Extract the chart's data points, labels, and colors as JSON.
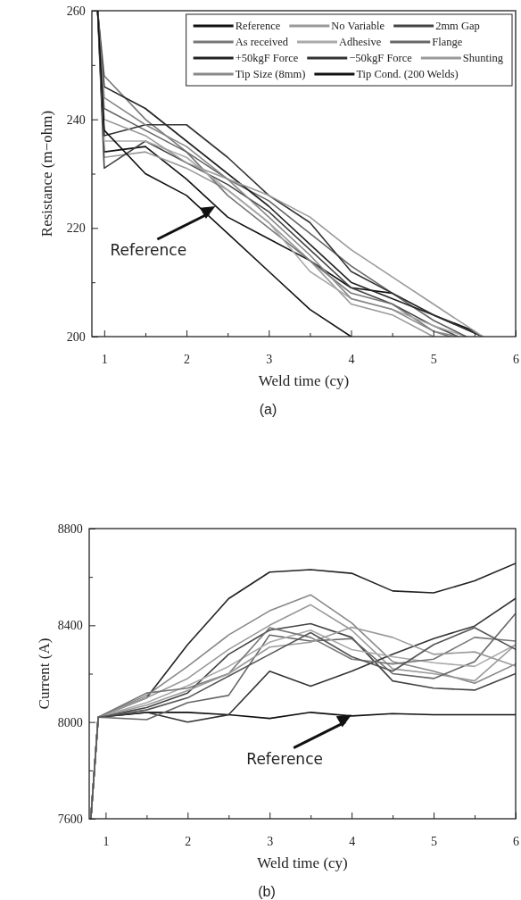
{
  "chart_data": [
    {
      "type": "line",
      "title": "(a)",
      "xlabel": "Weld time (cy)",
      "ylabel": "Resistance (m−ohm)",
      "xlim": [
        0.85,
        6
      ],
      "ylim": [
        200,
        260
      ],
      "xticks": [
        1,
        {
          "value": 1.5,
          "label": null
        },
        2,
        {
          "value": 2.5,
          "label": null
        },
        3,
        {
          "value": 3.5,
          "label": null
        },
        4,
        {
          "value": 4.5,
          "label": null
        },
        5,
        {
          "value": 5.5,
          "label": null
        },
        6
      ],
      "yticks": [
        200,
        {
          "value": 210,
          "label": null
        },
        220,
        {
          "value": 230,
          "label": null
        },
        240,
        {
          "value": 250,
          "label": null
        },
        260
      ],
      "grid": false,
      "legend": "top right",
      "marker": "none",
      "line_style": "solid",
      "annotations": [
        {
          "text": "Reference",
          "x": 2.35,
          "y": 224
        }
      ],
      "series": [
        {
          "name": "Reference",
          "color": "#111111",
          "x": [
            0.92,
            1,
            1.5,
            2,
            2.5,
            3,
            3.5,
            4,
            4.5,
            5,
            5.5
          ],
          "values": [
            260,
            234,
            235,
            229,
            222,
            218,
            214,
            209,
            208,
            204,
            201
          ]
        },
        {
          "name": "No Variable",
          "color": "#999999",
          "x": [
            0.92,
            1,
            1.5,
            2,
            2.5,
            3,
            3.5,
            4,
            4.5,
            5
          ],
          "values": [
            260,
            233,
            234,
            231,
            227,
            221,
            214,
            206,
            204,
            200
          ]
        },
        {
          "name": "2mm Gap",
          "color": "#444444",
          "x": [
            0.92,
            1,
            1.5,
            2,
            2.5,
            3,
            3.5,
            4,
            4.5,
            5,
            5.3
          ],
          "values": [
            260,
            231,
            236,
            232,
            228,
            223,
            216,
            209,
            206,
            202,
            200
          ]
        },
        {
          "name": "As received",
          "color": "#777777",
          "x": [
            0.92,
            1,
            1.5,
            2,
            2.5,
            3,
            3.5,
            4,
            4.5,
            5,
            5.2
          ],
          "values": [
            260,
            248,
            240,
            234,
            226,
            220,
            214,
            208,
            206,
            201,
            200
          ]
        },
        {
          "name": "Adhesive",
          "color": "#aaaaaa",
          "x": [
            0.92,
            1,
            1.5,
            2,
            2.5,
            3,
            3.5,
            4,
            4.5,
            5,
            5.4
          ],
          "values": [
            260,
            236,
            236,
            233,
            227,
            221,
            212,
            207,
            205,
            202,
            200
          ]
        },
        {
          "name": "Flange",
          "color": "#666666",
          "x": [
            0.92,
            1,
            1.5,
            2,
            2.5,
            3,
            3.5,
            4,
            4.5,
            5,
            5.4
          ],
          "values": [
            260,
            242,
            238,
            234,
            229,
            225,
            219,
            213,
            208,
            203,
            200
          ]
        },
        {
          "name": "+50kgF Force",
          "color": "#222222",
          "x": [
            0.92,
            1,
            1.5,
            2,
            2.5,
            3,
            3.5,
            4,
            4.5,
            5,
            5.6
          ],
          "values": [
            260,
            246,
            242,
            236,
            230,
            224,
            217,
            210,
            207,
            204,
            200
          ]
        },
        {
          "name": "−50kgF Force",
          "color": "#333333",
          "x": [
            0.92,
            1,
            1.5,
            2,
            2.5,
            3,
            3.5,
            4,
            4.5,
            5,
            5.6
          ],
          "values": [
            260,
            237,
            239,
            239,
            233,
            226,
            221,
            212,
            208,
            204,
            200
          ]
        },
        {
          "name": "Shunting",
          "color": "#9a9a9a",
          "x": [
            0.92,
            1,
            1.5,
            2,
            2.5,
            3,
            3.5,
            4,
            4.5,
            5,
            5.6
          ],
          "values": [
            260,
            240,
            237,
            232,
            229,
            226,
            222,
            216,
            211,
            206,
            200
          ]
        },
        {
          "name": "Tip Size (8mm)",
          "color": "#888888",
          "x": [
            0.92,
            1,
            1.5,
            2,
            2.5,
            3,
            3.5,
            4,
            4.5,
            5,
            5.3
          ],
          "values": [
            260,
            244,
            239,
            235,
            229,
            222,
            215,
            207,
            205,
            201,
            200
          ]
        },
        {
          "name": "Tip Cond. (200 Welds)",
          "color": "#111111",
          "x": [
            0.92,
            1,
            1.5,
            2,
            2.5,
            3,
            3.5,
            4
          ],
          "values": [
            260,
            238,
            230,
            226,
            219,
            212,
            205,
            200
          ]
        }
      ]
    },
    {
      "type": "line",
      "title": "(b)",
      "xlabel": "Weld time (cy)",
      "ylabel": "Current (A)",
      "xlim": [
        0.8,
        6
      ],
      "ylim": [
        7600,
        8800
      ],
      "xticks": [
        1,
        {
          "value": 1.5,
          "label": null
        },
        2,
        {
          "value": 2.5,
          "label": null
        },
        3,
        {
          "value": 3.5,
          "label": null
        },
        4,
        {
          "value": 4.5,
          "label": null
        },
        5,
        {
          "value": 5.5,
          "label": null
        },
        6
      ],
      "yticks": [
        7600,
        {
          "value": 7800,
          "label": null
        },
        8000,
        {
          "value": 8200,
          "label": null
        },
        8400,
        {
          "value": 8600,
          "label": null
        },
        8800
      ],
      "grid": false,
      "legend": false,
      "marker": "none",
      "line_style": "solid",
      "annotations": [
        {
          "text": "Reference",
          "x": 4,
          "y": 8030
        }
      ],
      "x": [
        0.82,
        0.91,
        1.5,
        2,
        2.5,
        3,
        3.5,
        4,
        4.5,
        5,
        5.5,
        6
      ],
      "series": [
        {
          "color": "#111111",
          "values": [
            7600,
            8020,
            8040,
            8040,
            8030,
            8015,
            8040,
            8025,
            8035,
            8030,
            8030,
            8030
          ]
        },
        {
          "color": "#222222",
          "values": [
            7600,
            8020,
            8100,
            8320,
            8510,
            8620,
            8630,
            8615,
            8542,
            8534,
            8584,
            8656
          ]
        },
        {
          "color": "#888888",
          "values": [
            7600,
            8020,
            8110,
            8230,
            8360,
            8460,
            8526,
            8410,
            8250,
            8210,
            8160,
            8240
          ]
        },
        {
          "color": "#999999",
          "values": [
            7600,
            8020,
            8100,
            8180,
            8300,
            8400,
            8485,
            8380,
            8220,
            8200,
            8170,
            8320
          ]
        },
        {
          "color": "#444444",
          "values": [
            7600,
            8020,
            8060,
            8120,
            8280,
            8380,
            8407,
            8350,
            8170,
            8140,
            8132,
            8200
          ]
        },
        {
          "color": "#333333",
          "values": [
            7600,
            8020,
            8040,
            8000,
            8030,
            8210,
            8148,
            8210,
            8280,
            8345,
            8397,
            8511
          ]
        },
        {
          "color": "#666666",
          "values": [
            7600,
            8020,
            8010,
            8080,
            8110,
            8360,
            8335,
            8345,
            8200,
            8180,
            8250,
            8449
          ]
        },
        {
          "color": "#aaaaaa",
          "values": [
            7600,
            8020,
            8080,
            8150,
            8230,
            8330,
            8380,
            8300,
            8270,
            8245,
            8230,
            8320
          ]
        },
        {
          "color": "#777777",
          "values": [
            7600,
            8020,
            8120,
            8140,
            8200,
            8390,
            8350,
            8260,
            8240,
            8260,
            8350,
            8335
          ]
        },
        {
          "color": "#9a9a9a",
          "values": [
            7600,
            8020,
            8070,
            8130,
            8200,
            8310,
            8330,
            8392,
            8350,
            8280,
            8290,
            8231
          ]
        },
        {
          "color": "#555555",
          "values": [
            7600,
            8020,
            8050,
            8100,
            8190,
            8280,
            8370,
            8270,
            8210,
            8320,
            8390,
            8300
          ]
        }
      ]
    }
  ]
}
